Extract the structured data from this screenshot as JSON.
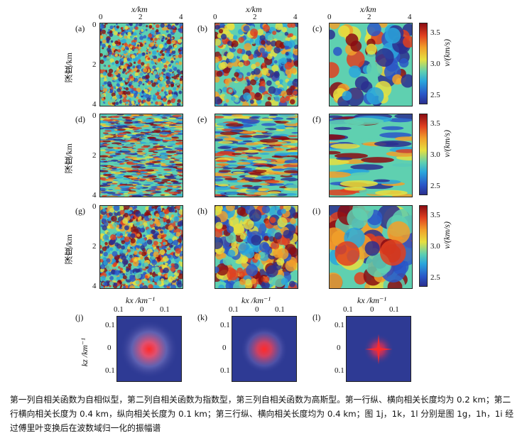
{
  "axes": {
    "x_label": "x/km",
    "depth_label": "深度/km",
    "x_ticks": [
      "0",
      "2",
      "4"
    ],
    "y_ticks": [
      "0",
      "2",
      "4"
    ],
    "colorbar_label": "v/(km/s)",
    "colorbar_ticks": [
      "3.5",
      "3.0",
      "2.5"
    ],
    "kx_label": "kx /km⁻¹",
    "kz_label": "kz /km⁻¹",
    "k_ticks": [
      "0.1",
      "0",
      "0.1"
    ]
  },
  "panel_labels": [
    "(a)",
    "(b)",
    "(c)",
    "(d)",
    "(e)",
    "(f)",
    "(g)",
    "(h)",
    "(i)",
    "(j)",
    "(k)",
    "(l)"
  ],
  "caption": "第一列自相关函数为自相似型，第二列自相关函数为指数型，第三列自相关函数为高斯型。第一行纵、横向相关长度均为 0.2 km；第二行横向相关长度为 0.4 km，纵向相关长度为 0.1 km；第三行纵、横向相关长度均为 0.4 km；图 1j，1k，1l 分别是图 1g，1h，1i 经过傅里叶变换后在波数域归一化的振幅谱",
  "colors": {
    "low": "#2b2f8f",
    "mid": "#e6e040",
    "high": "#8a0c12",
    "spectrum_bg": "#2e3a94",
    "spectrum_peak": "#e0202a"
  }
}
